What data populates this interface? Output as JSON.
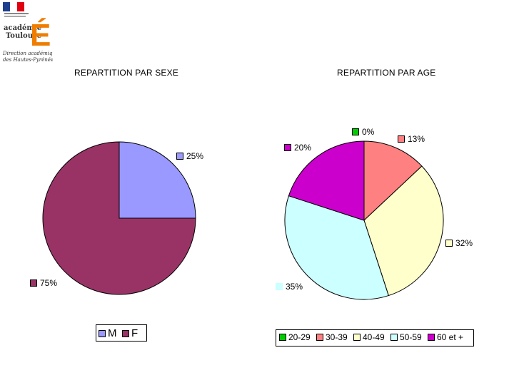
{
  "logo": {
    "brand_text": [
      "académie",
      "Toulouse"
    ],
    "letter": "É",
    "subtitle": [
      "Direction académique",
      "des Hautes-Pyrénées"
    ]
  },
  "chart_data": [
    {
      "type": "pie",
      "title": "REPARTITION PAR SEXE",
      "categories": [
        "M",
        "F"
      ],
      "values": [
        25,
        75
      ],
      "labels": [
        "25%",
        "75%"
      ],
      "colors": [
        "#9999ff",
        "#993366"
      ],
      "legend": "bottom"
    },
    {
      "type": "pie",
      "title": "REPARTITION PAR AGE",
      "categories": [
        "20-29",
        "30-39",
        "40-49",
        "50-59",
        "60 et +"
      ],
      "values": [
        0,
        13,
        32,
        35,
        20
      ],
      "labels": [
        "0%",
        "13%",
        "32%",
        "35%",
        "20%"
      ],
      "colors": [
        "#00cc00",
        "#ff8080",
        "#ffffcc",
        "#ccffff",
        "#cc00cc"
      ],
      "legend": "bottom"
    }
  ]
}
